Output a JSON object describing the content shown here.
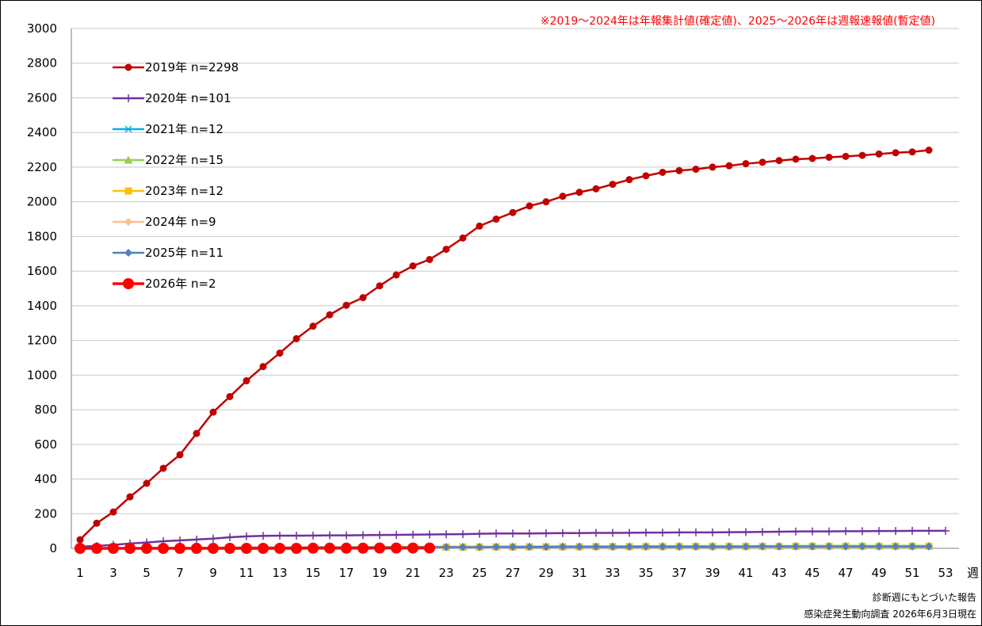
{
  "chart_data": {
    "type": "line",
    "title": "",
    "xlabel": "週",
    "ylabel": "",
    "xlim": [
      1,
      53
    ],
    "ylim": [
      0,
      3000
    ],
    "y_ticks": [
      0,
      200,
      400,
      600,
      800,
      1000,
      1200,
      1400,
      1600,
      1800,
      2000,
      2200,
      2400,
      2600,
      2800,
      3000
    ],
    "x_ticks": [
      1,
      3,
      5,
      7,
      9,
      11,
      13,
      15,
      17,
      19,
      21,
      23,
      25,
      27,
      29,
      31,
      33,
      35,
      37,
      39,
      41,
      43,
      45,
      47,
      49,
      51,
      53
    ],
    "grid": true,
    "legend_position": "top-left",
    "annotation": "※2019〜2024年は年報集計値(確定値)、2025〜2026年は週報速報値(暫定値)",
    "annotation_color": "#ff0000",
    "footer_lines": [
      "診断週にもとづいた報告",
      "感染症発生動向調査 2026年6月3日現在"
    ],
    "series": [
      {
        "name": "2019年 n=2298",
        "color": "#c00000",
        "marker": "circle",
        "values": [
          50,
          145,
          210,
          297,
          375,
          462,
          540,
          663,
          786,
          876,
          967,
          1049,
          1127,
          1210,
          1282,
          1348,
          1403,
          1447,
          1515,
          1578,
          1630,
          1667,
          1726,
          1791,
          1860,
          1900,
          1938,
          1976,
          2000,
          2032,
          2055,
          2075,
          2101,
          2128,
          2150,
          2170,
          2180,
          2188,
          2200,
          2208,
          2220,
          2228,
          2238,
          2246,
          2250,
          2257,
          2262,
          2268,
          2276,
          2283,
          2288,
          2298
        ]
      },
      {
        "name": "2020年 n=101",
        "color": "#7030a0",
        "marker": "plus",
        "values": [
          10,
          14,
          20,
          28,
          34,
          41,
          46,
          51,
          56,
          64,
          69,
          72,
          73,
          73,
          74,
          75,
          75,
          76,
          77,
          78,
          79,
          80,
          81,
          82,
          84,
          86,
          86,
          86,
          87,
          88,
          88,
          89,
          89,
          90,
          91,
          91,
          92,
          92,
          92,
          93,
          94,
          95,
          96,
          97,
          98,
          98,
          99,
          99,
          100,
          100,
          101,
          101,
          101
        ]
      },
      {
        "name": "2021年 n=12",
        "color": "#00b0f0",
        "marker": "x",
        "values": [
          0,
          1,
          1,
          1,
          2,
          2,
          2,
          3,
          3,
          3,
          4,
          4,
          4,
          5,
          5,
          5,
          6,
          6,
          6,
          7,
          7,
          7,
          8,
          8,
          8,
          8,
          9,
          9,
          9,
          9,
          10,
          10,
          10,
          10,
          10,
          10,
          11,
          11,
          11,
          11,
          11,
          11,
          11,
          12,
          12,
          12,
          12,
          12,
          12,
          12,
          12,
          12
        ]
      },
      {
        "name": "2022年 n=15",
        "color": "#92d050",
        "marker": "triangle",
        "values": [
          0,
          1,
          1,
          2,
          2,
          3,
          3,
          4,
          4,
          5,
          5,
          5,
          6,
          6,
          7,
          7,
          7,
          8,
          8,
          8,
          9,
          9,
          9,
          10,
          10,
          10,
          11,
          11,
          11,
          12,
          12,
          12,
          12,
          13,
          13,
          13,
          13,
          13,
          14,
          14,
          14,
          14,
          14,
          14,
          15,
          15,
          15,
          15,
          15,
          15,
          15,
          15
        ]
      },
      {
        "name": "2023年 n=12",
        "color": "#ffc000",
        "marker": "square",
        "values": [
          0,
          0,
          1,
          1,
          1,
          2,
          2,
          2,
          3,
          3,
          3,
          4,
          4,
          4,
          5,
          5,
          5,
          6,
          6,
          6,
          7,
          7,
          7,
          8,
          8,
          8,
          8,
          9,
          9,
          9,
          9,
          10,
          10,
          10,
          10,
          10,
          11,
          11,
          11,
          11,
          11,
          11,
          11,
          12,
          12,
          12,
          12,
          12,
          12,
          12,
          12,
          12
        ]
      },
      {
        "name": "2024年 n=9",
        "color": "#fac090",
        "marker": "diamond",
        "values": [
          0,
          0,
          1,
          1,
          1,
          1,
          2,
          2,
          2,
          3,
          3,
          3,
          3,
          4,
          4,
          4,
          4,
          5,
          5,
          5,
          5,
          6,
          6,
          6,
          6,
          6,
          7,
          7,
          7,
          7,
          7,
          7,
          8,
          8,
          8,
          8,
          8,
          8,
          8,
          9,
          9,
          9,
          9,
          9,
          9,
          9,
          9,
          9,
          9,
          9,
          9,
          9
        ]
      },
      {
        "name": "2025年 n=11",
        "color": "#4f81bd",
        "marker": "diamond",
        "values": [
          0,
          0,
          1,
          1,
          1,
          2,
          2,
          2,
          3,
          3,
          3,
          4,
          4,
          4,
          5,
          5,
          5,
          5,
          6,
          6,
          6,
          7,
          7,
          7,
          7,
          8,
          8,
          8,
          8,
          9,
          9,
          9,
          9,
          9,
          10,
          10,
          10,
          10,
          10,
          10,
          10,
          11,
          11,
          11,
          11,
          11,
          11,
          11,
          11,
          11,
          11,
          11
        ]
      },
      {
        "name": "2026年 n=2",
        "color": "#ff0000",
        "marker": "circle-large",
        "values": [
          0,
          0,
          0,
          0,
          0,
          0,
          0,
          0,
          0,
          0,
          0,
          0,
          0,
          0,
          1,
          1,
          1,
          1,
          2,
          2,
          2,
          2
        ]
      }
    ]
  }
}
